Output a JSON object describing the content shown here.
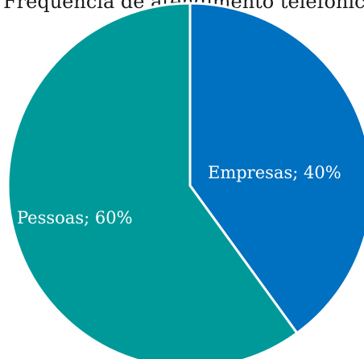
{
  "chart_data": {
    "type": "pie",
    "title": "Frequência de atendimento telefônico",
    "categories": [
      "Empresas",
      "Pessoas"
    ],
    "values": [
      40,
      60
    ],
    "labels": [
      "Empresas; 40%",
      "Pessoas; 60%"
    ],
    "colors": [
      "#0070C0",
      "#009999"
    ],
    "start_angle_deg": 0,
    "direction": "clockwise",
    "legend": "none"
  }
}
